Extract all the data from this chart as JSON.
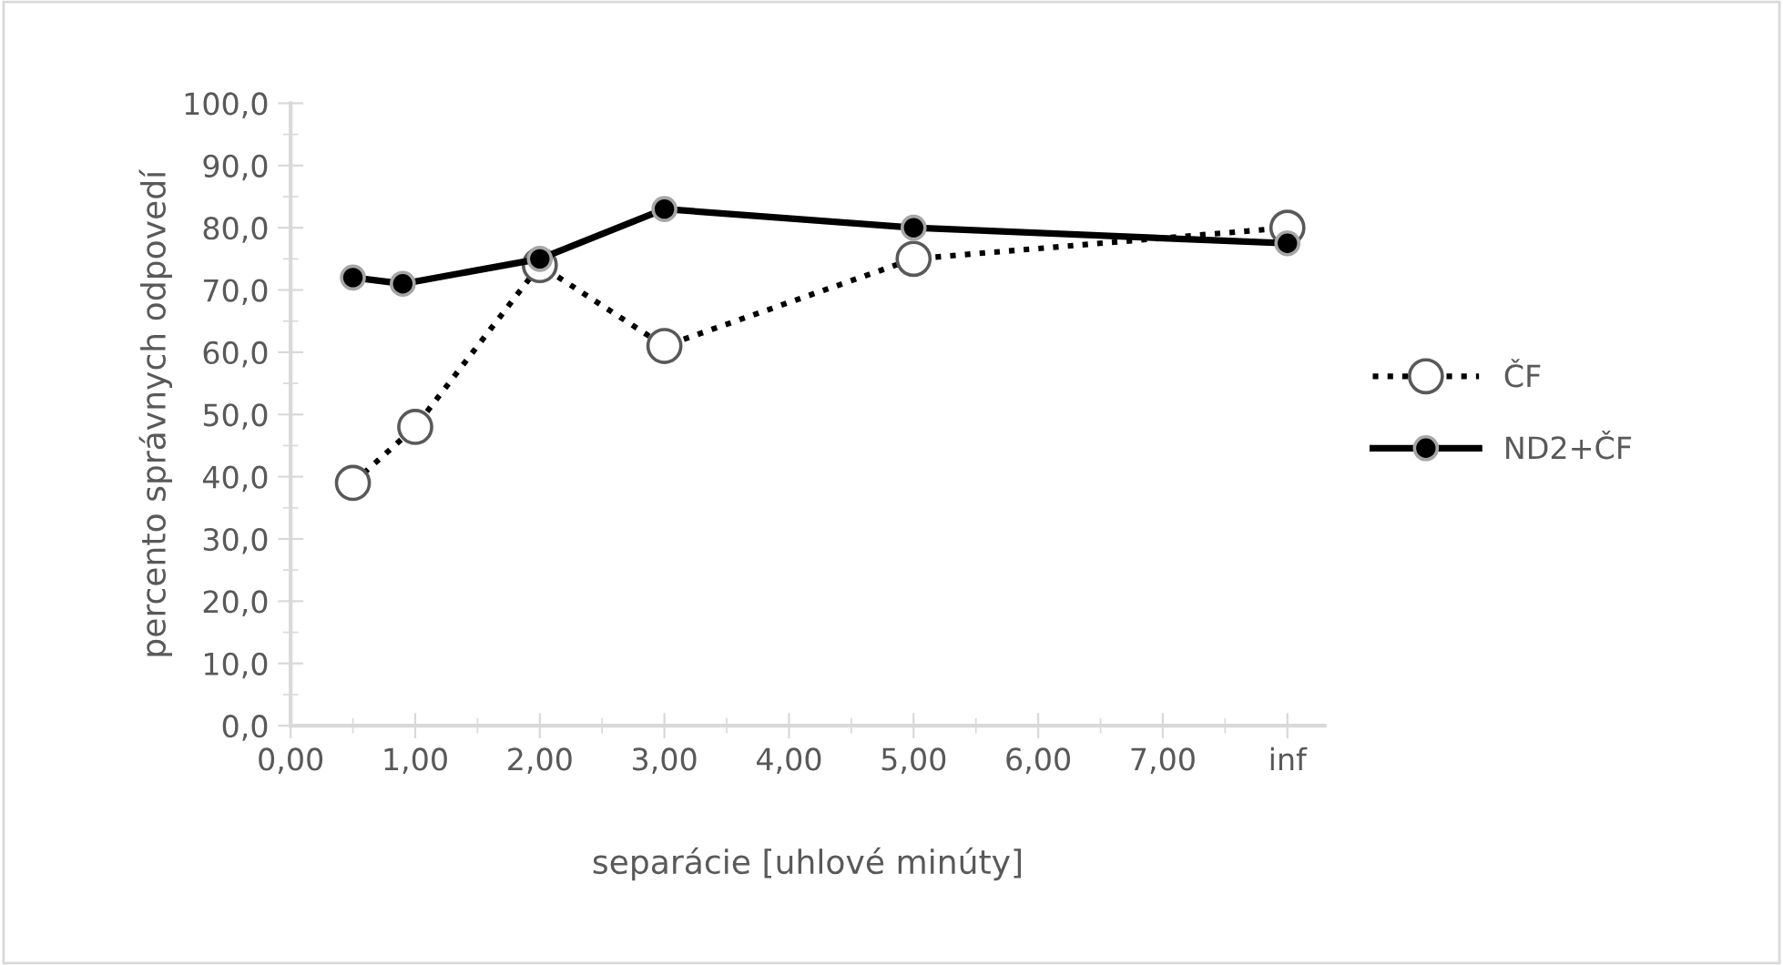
{
  "chart_data": {
    "type": "line",
    "xlabel": "separácie [uhlové minúty]",
    "ylabel": "percento správnych odpovedí",
    "xlim": [
      0,
      8.3
    ],
    "ylim": [
      0,
      100
    ],
    "xticks": [
      {
        "value": 0,
        "label": "0,00"
      },
      {
        "value": 1,
        "label": "1,00"
      },
      {
        "value": 2,
        "label": "2,00"
      },
      {
        "value": 3,
        "label": "3,00"
      },
      {
        "value": 4,
        "label": "4,00"
      },
      {
        "value": 5,
        "label": "5,00"
      },
      {
        "value": 6,
        "label": "6,00"
      },
      {
        "value": 7,
        "label": "7,00"
      },
      {
        "value": 8,
        "label": "inf"
      }
    ],
    "yticks": [
      {
        "value": 0,
        "label": "0,0"
      },
      {
        "value": 10,
        "label": "10,0"
      },
      {
        "value": 20,
        "label": "20,0"
      },
      {
        "value": 30,
        "label": "30,0"
      },
      {
        "value": 40,
        "label": "40,0"
      },
      {
        "value": 50,
        "label": "50,0"
      },
      {
        "value": 60,
        "label": "60,0"
      },
      {
        "value": 70,
        "label": "70,0"
      },
      {
        "value": 80,
        "label": "80,0"
      },
      {
        "value": 90,
        "label": "90,0"
      },
      {
        "value": 100,
        "label": "100,0"
      }
    ],
    "grid": false,
    "legend": "right",
    "marker": "circle",
    "series": [
      {
        "name": "ČF",
        "color": "#000000",
        "line_style": "dotted",
        "x": [
          0.5,
          1.0,
          2.0,
          3.0,
          5.0,
          8.0
        ],
        "values": [
          39,
          48,
          74,
          61,
          75,
          80
        ]
      },
      {
        "name": "ND2+ČF",
        "color": "#000000",
        "line_style": "solid",
        "x": [
          0.5,
          0.9,
          2.0,
          3.0,
          5.0,
          8.0
        ],
        "values": [
          72,
          71,
          75,
          83,
          80,
          77.5
        ]
      }
    ]
  }
}
